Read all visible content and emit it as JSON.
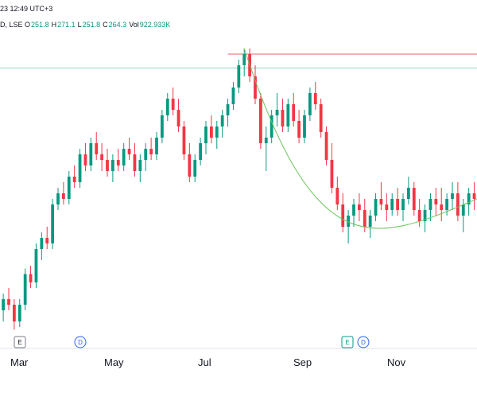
{
  "header": {
    "datetime": "23 12:49 UTC+3",
    "exchange": "D, LSE",
    "ohlc": [
      {
        "k": "O",
        "v": "251.8"
      },
      {
        "k": "H",
        "v": "271.1"
      },
      {
        "k": "L",
        "v": "251.8"
      },
      {
        "k": "C",
        "v": "264.3"
      },
      {
        "k": "Vol",
        "v": "922.933K"
      }
    ]
  },
  "colors": {
    "up": "#089981",
    "down": "#f23645",
    "resistance": "#f0606a",
    "support": "#9ad4c4",
    "curve": "#6cc35c",
    "marker_blue": "#2962ff"
  },
  "markers": [
    {
      "label": "E",
      "month_index": 0,
      "style": "earnings"
    },
    {
      "label": "D",
      "month_index": 1,
      "style": "dividend"
    },
    {
      "label": "E",
      "month_index": 4,
      "style": "earnings"
    },
    {
      "label": "D",
      "month_index": 4,
      "style": "dividend"
    }
  ],
  "chart_data": {
    "type": "candlestick",
    "x_labels": [
      "Mar",
      "May",
      "Jul",
      "Sep",
      "Nov"
    ],
    "y_range": [
      180,
      290
    ],
    "grid": false,
    "overlays": {
      "resistance_level": 282,
      "support_level": 277,
      "rounding_curve": "from July high down to a November low near 224"
    },
    "series": [
      {
        "month": "Feb",
        "candles": [
          [
            206,
            208,
            200,
            203
          ],
          [
            203,
            205,
            196,
            198
          ],
          [
            198,
            200,
            188,
            190
          ],
          [
            190,
            196,
            186,
            194
          ],
          [
            194,
            198,
            190,
            192
          ]
        ]
      },
      {
        "month": "Mar",
        "candles": [
          [
            192,
            194,
            183,
            186
          ],
          [
            186,
            194,
            184,
            192
          ],
          [
            192,
            205,
            190,
            203
          ],
          [
            203,
            206,
            198,
            200
          ],
          [
            200,
            214,
            198,
            212
          ],
          [
            212,
            218,
            208,
            216
          ],
          [
            216,
            220,
            212,
            214
          ],
          [
            214,
            230,
            212,
            228
          ],
          [
            228,
            234,
            226,
            232
          ],
          [
            232,
            236,
            228,
            230
          ]
        ]
      },
      {
        "month": "Apr",
        "candles": [
          [
            230,
            240,
            228,
            238
          ],
          [
            238,
            242,
            234,
            236
          ],
          [
            236,
            248,
            234,
            246
          ],
          [
            246,
            250,
            240,
            242
          ],
          [
            242,
            252,
            240,
            250
          ],
          [
            250,
            254,
            244,
            246
          ],
          [
            246,
            250,
            240,
            244
          ],
          [
            244,
            248,
            238,
            240
          ],
          [
            240,
            246,
            236,
            244
          ],
          [
            244,
            248,
            240,
            242
          ]
        ]
      },
      {
        "month": "May",
        "candles": [
          [
            242,
            250,
            240,
            248
          ],
          [
            248,
            252,
            244,
            246
          ],
          [
            246,
            250,
            238,
            240
          ],
          [
            240,
            246,
            236,
            244
          ],
          [
            244,
            250,
            240,
            248
          ],
          [
            248,
            252,
            244,
            246
          ],
          [
            246,
            254,
            244,
            252
          ],
          [
            252,
            262,
            250,
            260
          ],
          [
            260,
            268,
            258,
            266
          ],
          [
            266,
            270,
            260,
            262
          ]
        ]
      },
      {
        "month": "Jun",
        "candles": [
          [
            262,
            266,
            254,
            256
          ],
          [
            256,
            258,
            244,
            246
          ],
          [
            246,
            250,
            236,
            238
          ],
          [
            238,
            246,
            236,
            244
          ],
          [
            244,
            252,
            242,
            250
          ],
          [
            250,
            258,
            246,
            256
          ],
          [
            256,
            260,
            250,
            252
          ],
          [
            252,
            258,
            248,
            256
          ],
          [
            256,
            262,
            252,
            260
          ],
          [
            260,
            266,
            256,
            264
          ]
        ]
      },
      {
        "month": "Jul",
        "candles": [
          [
            264,
            272,
            262,
            270
          ],
          [
            270,
            280,
            268,
            278
          ],
          [
            278,
            284,
            274,
            282
          ],
          [
            282,
            284,
            272,
            274
          ],
          [
            274,
            278,
            264,
            266
          ],
          [
            266,
            268,
            248,
            250
          ],
          [
            250,
            256,
            240,
            252
          ],
          [
            252,
            262,
            250,
            260
          ],
          [
            260,
            268,
            256,
            262
          ],
          [
            262,
            266,
            254,
            256
          ]
        ]
      },
      {
        "month": "Aug",
        "candles": [
          [
            256,
            266,
            254,
            264
          ],
          [
            264,
            268,
            256,
            258
          ],
          [
            258,
            262,
            250,
            252
          ],
          [
            252,
            262,
            250,
            260
          ],
          [
            260,
            270,
            258,
            268
          ],
          [
            268,
            272,
            262,
            264
          ],
          [
            264,
            266,
            252,
            254
          ],
          [
            254,
            256,
            242,
            244
          ],
          [
            244,
            250,
            232,
            234
          ],
          [
            234,
            238,
            226,
            228
          ]
        ]
      },
      {
        "month": "Sep",
        "candles": [
          [
            228,
            232,
            218,
            220
          ],
          [
            220,
            226,
            214,
            224
          ],
          [
            224,
            230,
            220,
            228
          ],
          [
            228,
            232,
            222,
            226
          ],
          [
            226,
            230,
            218,
            220
          ],
          [
            220,
            226,
            216,
            224
          ],
          [
            224,
            232,
            222,
            230
          ],
          [
            230,
            236,
            226,
            228
          ],
          [
            228,
            232,
            222,
            226
          ],
          [
            226,
            232,
            224,
            230
          ]
        ]
      },
      {
        "month": "Oct",
        "candles": [
          [
            230,
            234,
            224,
            226
          ],
          [
            226,
            232,
            222,
            230
          ],
          [
            230,
            238,
            228,
            234
          ],
          [
            234,
            236,
            224,
            226
          ],
          [
            226,
            230,
            220,
            222
          ],
          [
            222,
            228,
            218,
            226
          ],
          [
            226,
            232,
            222,
            230
          ],
          [
            230,
            234,
            224,
            228
          ],
          [
            228,
            234,
            222,
            226
          ],
          [
            226,
            232,
            224,
            230
          ]
        ]
      },
      {
        "month": "Nov",
        "candles": [
          [
            230,
            236,
            226,
            232
          ],
          [
            232,
            236,
            222,
            224
          ],
          [
            224,
            230,
            218,
            228
          ],
          [
            228,
            234,
            224,
            232
          ],
          [
            232,
            236,
            226,
            230
          ]
        ]
      }
    ]
  }
}
